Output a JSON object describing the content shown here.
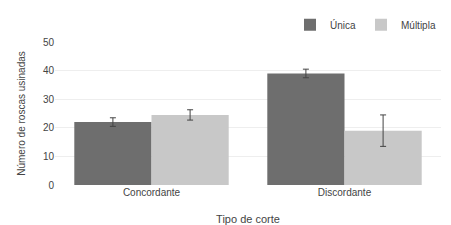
{
  "chart_data": {
    "type": "bar",
    "xlabel": "Tipo de corte",
    "ylabel": "Número de roscas usinadas",
    "categories": [
      "Concordante",
      "Discordante"
    ],
    "series": [
      {
        "name": "Única",
        "color": "#6e6e6e",
        "values": [
          22,
          39
        ],
        "errors": [
          1.5,
          1.5
        ]
      },
      {
        "name": "Múltipla",
        "color": "#c8c8c8",
        "values": [
          24.5,
          19
        ],
        "errors": [
          1.8,
          5.5
        ]
      }
    ],
    "ylim": [
      0,
      50
    ],
    "yticks": [
      0,
      10,
      20,
      30,
      40,
      50
    ],
    "grid": true,
    "legend": "upper right"
  }
}
